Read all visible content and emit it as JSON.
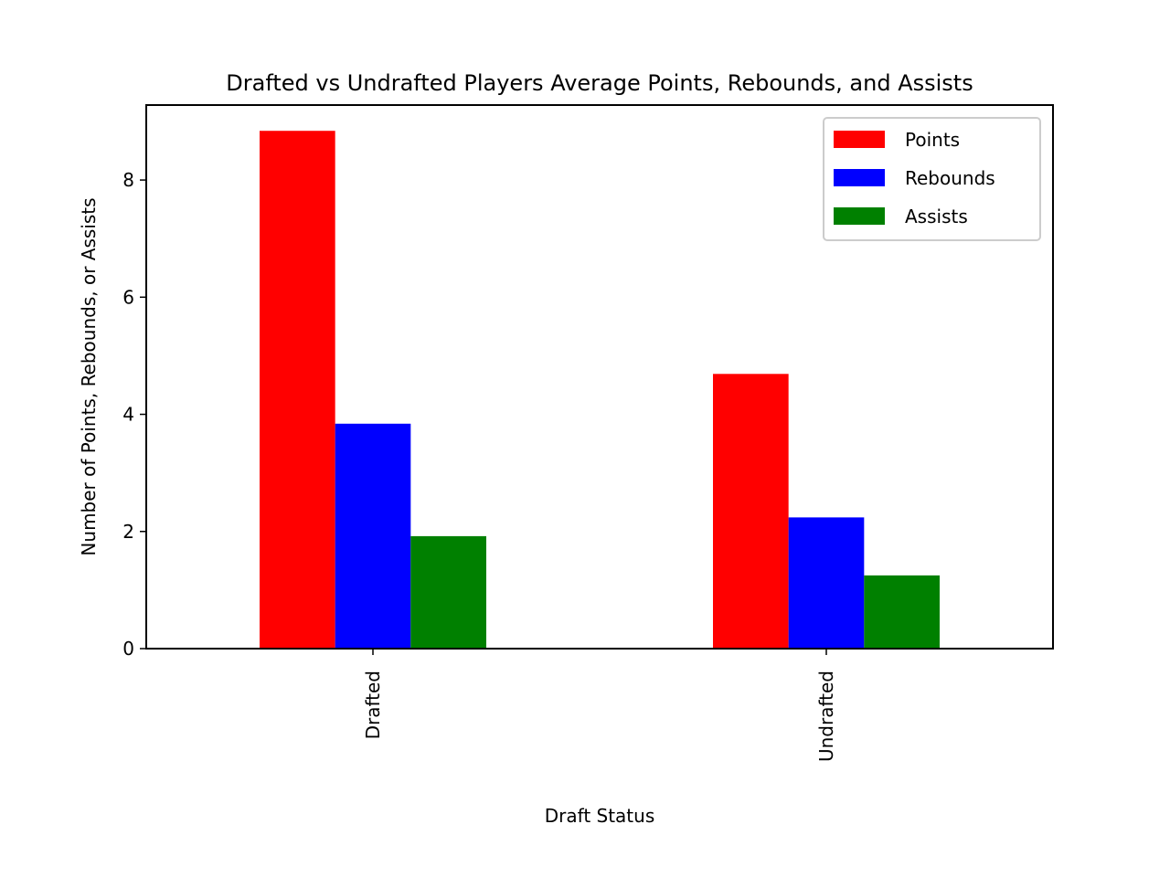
{
  "chart_data": {
    "type": "bar",
    "title": "Drafted vs Undrafted Players Average Points, Rebounds, and Assists",
    "xlabel": "Draft Status",
    "ylabel": "Number of Points, Rebounds, or Assists",
    "categories": [
      "Drafted",
      "Undrafted"
    ],
    "series": [
      {
        "name": "Points",
        "color": "#ff0000",
        "values": [
          8.84,
          4.69
        ]
      },
      {
        "name": "Rebounds",
        "color": "#0000ff",
        "values": [
          3.84,
          2.24
        ]
      },
      {
        "name": "Assists",
        "color": "#008000",
        "values": [
          1.92,
          1.25
        ]
      }
    ],
    "yticks": [
      0,
      2,
      4,
      6,
      8
    ],
    "ylim": [
      0,
      9.28
    ],
    "grid": false,
    "legend_position": "top-right"
  }
}
